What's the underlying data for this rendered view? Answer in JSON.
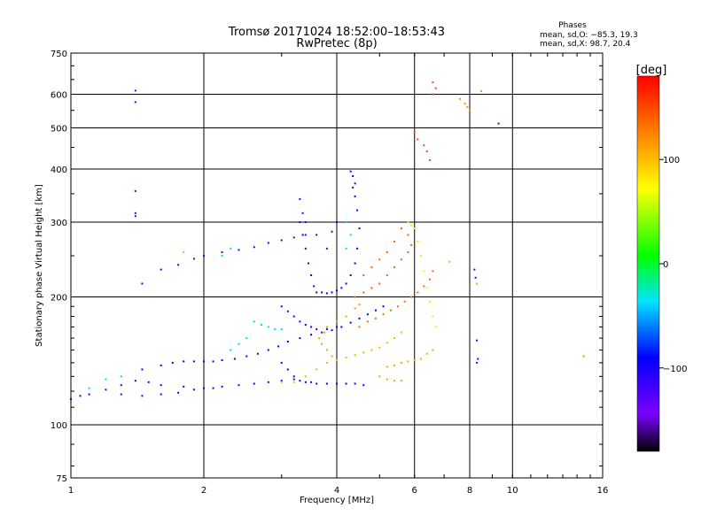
{
  "chart_data": {
    "type": "scatter",
    "title": "Tromsø 20171024 18:52:00–18:53:43",
    "subtitle": "RwPretec (8p)",
    "stats": {
      "heading": "Phases",
      "line1": "mean, sd,O: −85.3, 19.3",
      "line2": "mean, sd,X:  98.7, 20.4"
    },
    "xlabel": "Frequency [MHz]",
    "ylabel": "Stationary phase Virtual Height [km]",
    "xscale": "log",
    "yscale": "log",
    "xlim": [
      1,
      16
    ],
    "ylim": [
      75,
      750
    ],
    "xticks": [
      1,
      2,
      4,
      6,
      8,
      10,
      16
    ],
    "xtick_labels": [
      "1",
      "2",
      "4",
      "6",
      "8",
      "10",
      "16"
    ],
    "yticks": [
      75,
      100,
      200,
      300,
      400,
      500,
      600,
      750
    ],
    "ytick_labels": [
      "75",
      "100",
      "200",
      "300",
      "400",
      "500",
      "600",
      "750"
    ],
    "grid": true,
    "colorbar": {
      "label": "[deg]",
      "range": [
        -180,
        180
      ],
      "ticks": [
        100,
        0,
        -100
      ],
      "tick_labels": [
        "100",
        "0",
        "−100"
      ]
    },
    "series": [
      {
        "color_deg": -100,
        "points": [
          [
            1.0,
            115
          ],
          [
            1.05,
            117
          ],
          [
            1.1,
            118
          ],
          [
            1.2,
            121
          ],
          [
            1.3,
            124
          ],
          [
            1.4,
            127
          ],
          [
            1.5,
            126
          ],
          [
            1.6,
            124
          ],
          [
            1.8,
            123
          ],
          [
            2.0,
            122
          ],
          [
            2.2,
            123
          ],
          [
            2.4,
            124
          ],
          [
            2.6,
            125
          ],
          [
            2.8,
            126
          ],
          [
            3.0,
            127
          ],
          [
            3.2,
            128
          ],
          [
            1.3,
            118
          ],
          [
            1.45,
            117
          ],
          [
            1.6,
            118
          ],
          [
            1.75,
            119
          ],
          [
            1.9,
            121
          ],
          [
            2.1,
            122
          ]
        ]
      },
      {
        "color_deg": -90,
        "points": [
          [
            1.45,
            135
          ],
          [
            1.6,
            138
          ],
          [
            1.7,
            140
          ],
          [
            1.8,
            141
          ],
          [
            1.9,
            141
          ],
          [
            2.0,
            141
          ],
          [
            2.1,
            141
          ],
          [
            2.2,
            142
          ],
          [
            2.35,
            143
          ],
          [
            2.5,
            145
          ],
          [
            2.65,
            147
          ],
          [
            2.8,
            150
          ],
          [
            2.95,
            153
          ],
          [
            3.1,
            157
          ],
          [
            3.3,
            160
          ],
          [
            3.5,
            163
          ],
          [
            3.7,
            165
          ],
          [
            3.9,
            167
          ],
          [
            4.1,
            170
          ],
          [
            4.3,
            174
          ],
          [
            4.5,
            178
          ],
          [
            4.7,
            182
          ],
          [
            4.9,
            186
          ],
          [
            5.1,
            190
          ]
        ]
      },
      {
        "color_deg": -110,
        "points": [
          [
            1.45,
            215
          ],
          [
            1.6,
            232
          ],
          [
            1.75,
            238
          ],
          [
            1.9,
            246
          ],
          [
            2.0,
            250
          ],
          [
            2.2,
            255
          ],
          [
            2.4,
            258
          ],
          [
            2.6,
            262
          ],
          [
            2.8,
            268
          ],
          [
            3.0,
            272
          ],
          [
            3.2,
            276
          ],
          [
            3.4,
            280
          ]
        ]
      },
      {
        "color_deg": -95,
        "points": [
          [
            3.3,
            300
          ],
          [
            3.35,
            280
          ],
          [
            3.4,
            260
          ],
          [
            3.45,
            240
          ],
          [
            3.5,
            225
          ],
          [
            3.55,
            212
          ],
          [
            3.6,
            205
          ],
          [
            3.7,
            205
          ],
          [
            3.8,
            204
          ],
          [
            3.9,
            205
          ],
          [
            4.0,
            207
          ],
          [
            4.1,
            210
          ],
          [
            4.2,
            215
          ],
          [
            4.3,
            225
          ],
          [
            4.4,
            240
          ],
          [
            4.45,
            260
          ],
          [
            4.5,
            290
          ],
          [
            4.45,
            320
          ],
          [
            4.4,
            345
          ]
        ]
      },
      {
        "color_deg": -105,
        "points": [
          [
            3.35,
            315
          ],
          [
            3.3,
            340
          ],
          [
            3.4,
            300
          ],
          [
            3.6,
            280
          ],
          [
            3.8,
            260
          ],
          [
            3.9,
            285
          ],
          [
            4.0,
            300
          ]
        ]
      },
      {
        "color_deg": -100,
        "points": [
          [
            3.0,
            190
          ],
          [
            3.1,
            185
          ],
          [
            3.2,
            180
          ],
          [
            3.3,
            175
          ],
          [
            3.4,
            172
          ],
          [
            3.5,
            170
          ],
          [
            3.6,
            168
          ],
          [
            3.8,
            168
          ],
          [
            4.0,
            170
          ]
        ]
      },
      {
        "color_deg": -95,
        "points": [
          [
            3.0,
            140
          ],
          [
            3.1,
            135
          ],
          [
            3.2,
            130
          ],
          [
            3.3,
            127
          ],
          [
            3.4,
            126
          ],
          [
            3.5,
            126
          ],
          [
            3.6,
            125
          ],
          [
            3.8,
            125
          ],
          [
            4.0,
            125
          ],
          [
            4.2,
            125
          ],
          [
            4.4,
            125
          ],
          [
            4.6,
            124
          ]
        ]
      },
      {
        "color_deg": -95,
        "points": [
          [
            4.3,
            395
          ],
          [
            4.35,
            385
          ],
          [
            4.4,
            370
          ],
          [
            4.35,
            362
          ]
        ]
      },
      {
        "color_deg": -115,
        "points": [
          [
            1.4,
            612
          ],
          [
            1.4,
            575
          ],
          [
            1.4,
            355
          ],
          [
            1.4,
            315
          ],
          [
            1.4,
            310
          ],
          [
            8.2,
            232
          ],
          [
            8.25,
            222
          ],
          [
            8.3,
            158
          ],
          [
            8.35,
            143
          ],
          [
            8.3,
            140
          ],
          [
            9.3,
            512
          ]
        ]
      },
      {
        "color_deg": 115,
        "points": [
          [
            3.9,
            145
          ],
          [
            3.8,
            150
          ],
          [
            3.7,
            155
          ],
          [
            3.65,
            160
          ],
          [
            3.75,
            165
          ],
          [
            3.8,
            170
          ],
          [
            4.0,
            175
          ],
          [
            4.2,
            180
          ],
          [
            4.4,
            188
          ],
          [
            4.5,
            192
          ]
        ]
      },
      {
        "color_deg": 105,
        "points": [
          [
            3.0,
            126
          ],
          [
            3.2,
            126
          ],
          [
            3.4,
            130
          ],
          [
            3.6,
            135
          ],
          [
            3.8,
            140
          ],
          [
            4.0,
            142
          ],
          [
            4.2,
            144
          ],
          [
            4.4,
            146
          ],
          [
            4.6,
            148
          ],
          [
            4.8,
            150
          ],
          [
            5.0,
            152
          ],
          [
            5.2,
            156
          ],
          [
            5.4,
            160
          ],
          [
            5.6,
            165
          ]
        ]
      },
      {
        "color_deg": 110,
        "points": [
          [
            5.0,
            130
          ],
          [
            5.2,
            128
          ],
          [
            5.4,
            127
          ],
          [
            5.6,
            127
          ],
          [
            5.2,
            137
          ],
          [
            5.4,
            138
          ],
          [
            5.6,
            140
          ],
          [
            5.8,
            141
          ],
          [
            6.0,
            142
          ],
          [
            6.2,
            143
          ],
          [
            6.4,
            147
          ],
          [
            6.6,
            150
          ]
        ]
      },
      {
        "color_deg": 140,
        "points": [
          [
            4.4,
            200
          ],
          [
            4.6,
            205
          ],
          [
            4.8,
            210
          ],
          [
            5.0,
            215
          ],
          [
            5.2,
            225
          ],
          [
            5.4,
            235
          ],
          [
            5.6,
            245
          ],
          [
            5.8,
            255
          ],
          [
            5.9,
            265
          ],
          [
            5.8,
            280
          ],
          [
            5.6,
            290
          ],
          [
            5.4,
            270
          ],
          [
            5.2,
            255
          ],
          [
            5.0,
            245
          ],
          [
            4.8,
            235
          ],
          [
            4.6,
            225
          ]
        ]
      },
      {
        "color_deg": 135,
        "points": [
          [
            4.5,
            170
          ],
          [
            4.7,
            175
          ],
          [
            4.9,
            178
          ],
          [
            5.1,
            182
          ],
          [
            5.3,
            186
          ],
          [
            5.5,
            190
          ],
          [
            5.7,
            195
          ],
          [
            5.9,
            200
          ],
          [
            6.1,
            205
          ],
          [
            6.3,
            212
          ],
          [
            6.5,
            220
          ],
          [
            6.6,
            230
          ]
        ]
      },
      {
        "color_deg": 150,
        "points": [
          [
            6.0,
            490
          ],
          [
            6.1,
            470
          ],
          [
            6.3,
            455
          ],
          [
            6.4,
            440
          ],
          [
            6.5,
            420
          ],
          [
            6.6,
            600
          ],
          [
            6.7,
            620
          ],
          [
            6.6,
            640
          ]
        ]
      },
      {
        "color_deg": 120,
        "points": [
          [
            7.6,
            585
          ],
          [
            7.8,
            570
          ],
          [
            7.9,
            560
          ],
          [
            8.0,
            550
          ],
          [
            8.5,
            610
          ],
          [
            14.5,
            145
          ]
        ]
      },
      {
        "color_deg": -40,
        "points": [
          [
            2.6,
            175
          ],
          [
            2.7,
            172
          ],
          [
            2.8,
            170
          ],
          [
            2.9,
            168
          ],
          [
            3.0,
            168
          ],
          [
            2.5,
            160
          ],
          [
            2.4,
            155
          ],
          [
            2.3,
            150
          ],
          [
            1.1,
            122
          ],
          [
            1.2,
            128
          ],
          [
            1.3,
            130
          ],
          [
            2.2,
            250
          ],
          [
            2.3,
            260
          ],
          [
            4.2,
            300
          ],
          [
            4.3,
            280
          ],
          [
            4.2,
            260
          ]
        ]
      },
      {
        "color_deg": 60,
        "points": [
          [
            5.8,
            300
          ],
          [
            5.9,
            295
          ],
          [
            6.0,
            290
          ],
          [
            6.1,
            270
          ],
          [
            6.2,
            250
          ],
          [
            6.3,
            230
          ],
          [
            6.4,
            210
          ],
          [
            6.5,
            195
          ],
          [
            6.6,
            180
          ],
          [
            6.7,
            170
          ]
        ]
      },
      {
        "color_deg": 30,
        "points": [
          [
            1.8,
            255
          ],
          [
            7.2,
            242
          ],
          [
            8.3,
            215
          ]
        ]
      }
    ]
  }
}
